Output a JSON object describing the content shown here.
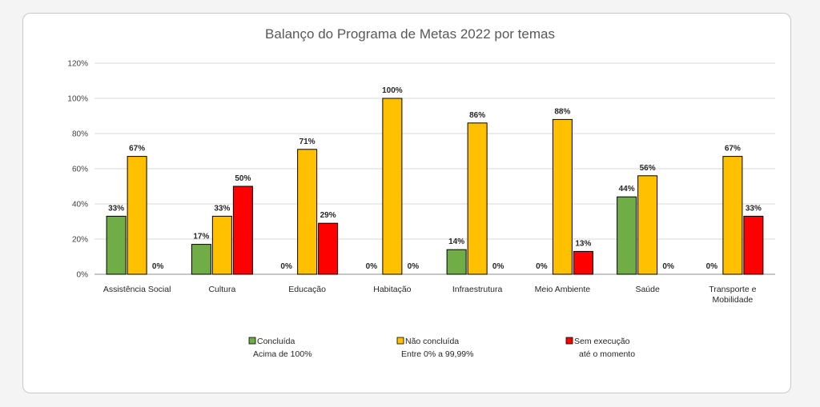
{
  "chart_data": {
    "type": "bar",
    "title": "Balanço do Programa de Metas 2022 por temas",
    "xlabel": "",
    "ylabel": "",
    "ylim": [
      0,
      120
    ],
    "yticks": [
      "0%",
      "20%",
      "40%",
      "60%",
      "80%",
      "100%",
      "120%"
    ],
    "yticks_values": [
      0,
      20,
      40,
      60,
      80,
      100,
      120
    ],
    "grid": true,
    "legend_position": "bottom",
    "categories": [
      [
        "Assistência Social"
      ],
      [
        "Cultura"
      ],
      [
        "Educação"
      ],
      [
        "Habitação"
      ],
      [
        "Infraestrutura"
      ],
      [
        "Meio Ambiente"
      ],
      [
        "Saúde"
      ],
      [
        "Transporte e",
        "Mobilidade"
      ]
    ],
    "series": [
      {
        "name": "Concluída",
        "subtitle": "Acima de 100%",
        "color": "#70ad47",
        "values": [
          33,
          17,
          0,
          0,
          14,
          0,
          44,
          0
        ],
        "labels": [
          "33%",
          "17%",
          "0%",
          "0%",
          "14%",
          "0%",
          "44%",
          "0%"
        ]
      },
      {
        "name": "Não concluída",
        "subtitle": "Entre 0% a 99,99%",
        "color": "#ffc000",
        "values": [
          67,
          33,
          71,
          100,
          86,
          88,
          56,
          67
        ],
        "labels": [
          "67%",
          "33%",
          "71%",
          "100%",
          "86%",
          "88%",
          "56%",
          "67%"
        ]
      },
      {
        "name": "Sem execução",
        "subtitle": "até o momento",
        "color": "#ff0000",
        "values": [
          0,
          50,
          29,
          0,
          0,
          13,
          0,
          33
        ],
        "labels": [
          "0%",
          "50%",
          "29%",
          "0%",
          "0%",
          "13%",
          "0%",
          "33%"
        ]
      }
    ]
  }
}
